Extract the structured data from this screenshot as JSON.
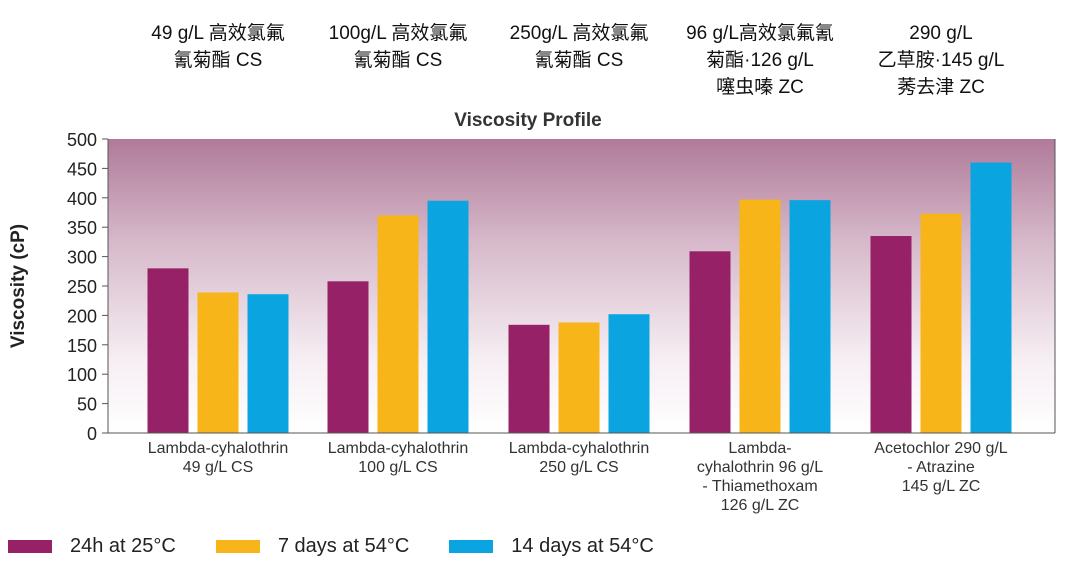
{
  "header_labels": [
    [
      "49 g/L 高效氯氟",
      "氰菊酯 CS"
    ],
    [
      "100g/L 高效氯氟",
      "氰菊酯 CS"
    ],
    [
      "250g/L 高效氯氟",
      "氰菊酯 CS"
    ],
    [
      "96 g/L高效氯氟氰",
      "菊酯·126 g/L",
      "噻虫嗪 ZC"
    ],
    [
      "290 g/L",
      "乙草胺·145 g/L",
      "莠去津 ZC"
    ]
  ],
  "chart_data": {
    "type": "bar",
    "title": "Viscosity Profile",
    "ylabel": "Viscosity (cP)",
    "xlabel": "",
    "ylim": [
      0,
      500
    ],
    "yticks": [
      0,
      50,
      100,
      150,
      200,
      250,
      300,
      350,
      400,
      450,
      500
    ],
    "categories": [
      [
        "Lambda-cyhalothrin",
        "49 g/L CS"
      ],
      [
        "Lambda-cyhalothrin",
        "100 g/L CS"
      ],
      [
        "Lambda-cyhalothrin",
        "250 g/L CS"
      ],
      [
        "Lambda-",
        "cyhalothrin 96 g/L",
        "- Thiamethoxam",
        "126 g/L ZC"
      ],
      [
        "Acetochlor 290 g/L",
        "- Atrazine",
        "145 g/L ZC"
      ]
    ],
    "series": [
      {
        "name": "24h at 25°C",
        "color": "#962166",
        "values": [
          280,
          258,
          184,
          309,
          335
        ]
      },
      {
        "name": "7 days at 54°C",
        "color": "#f7b519",
        "values": [
          239,
          370,
          188,
          397,
          373
        ]
      },
      {
        "name": "14 days at 54°C",
        "color": "#0aa5e0",
        "values": [
          236,
          395,
          202,
          396,
          460
        ]
      }
    ],
    "legend_position": "bottom-left",
    "grid": false,
    "background": "gradient mauve to white"
  }
}
